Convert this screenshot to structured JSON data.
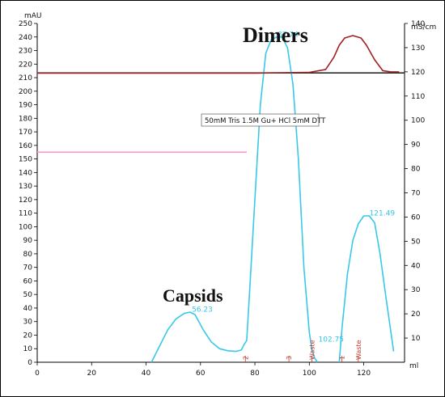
{
  "chart_data": {
    "type": "line",
    "y_left_label": "mAU",
    "y_right_label": "mS/cm",
    "x_unit": "ml",
    "xlim": [
      0,
      135
    ],
    "ylim_left": [
      0,
      250
    ],
    "ylim_right": [
      0,
      140
    ],
    "x_ticks": [
      "0",
      "20",
      "40",
      "60",
      "80",
      "100",
      "120"
    ],
    "x_tick_values": [
      0,
      20,
      40,
      60,
      80,
      100,
      120
    ],
    "y_left_ticks": [
      "0",
      "10",
      "20",
      "30",
      "40",
      "50",
      "60",
      "70",
      "80",
      "90",
      "100",
      "110",
      "120",
      "130",
      "140",
      "150",
      "160",
      "170",
      "180",
      "190",
      "200",
      "210",
      "220",
      "230",
      "240",
      "250"
    ],
    "y_left_tick_values": [
      0,
      10,
      20,
      30,
      40,
      50,
      60,
      70,
      80,
      90,
      100,
      110,
      120,
      130,
      140,
      150,
      160,
      170,
      180,
      190,
      200,
      210,
      220,
      230,
      240,
      250
    ],
    "y_right_ticks": [
      "10",
      "20",
      "30",
      "40",
      "50",
      "60",
      "70",
      "80",
      "90",
      "100",
      "110",
      "120",
      "130",
      "140"
    ],
    "y_right_tick_values": [
      10,
      20,
      30,
      40,
      50,
      60,
      70,
      80,
      90,
      100,
      110,
      120,
      130,
      140
    ],
    "series": [
      {
        "color": "#38c8e8",
        "axis": "left",
        "segments": [
          [
            [
              42,
              0
            ],
            [
              45,
              12
            ],
            [
              48,
              24
            ],
            [
              51,
              32
            ],
            [
              54,
              36
            ],
            [
              56.2,
              37
            ],
            [
              58,
              35
            ],
            [
              61,
              24
            ],
            [
              64,
              15
            ],
            [
              67,
              10
            ],
            [
              70,
              8.5
            ],
            [
              73,
              8
            ],
            [
              75,
              9
            ],
            [
              76,
              13
            ],
            [
              77,
              16
            ],
            [
              78,
              50
            ],
            [
              80,
              120
            ],
            [
              82,
              190
            ],
            [
              84,
              228
            ],
            [
              86,
              238
            ],
            [
              88,
              240
            ],
            [
              90,
              240
            ],
            [
              92,
              232
            ],
            [
              94,
              205
            ],
            [
              96,
              150
            ],
            [
              98,
              70
            ],
            [
              100,
              22
            ],
            [
              101,
              9
            ],
            [
              102,
              3
            ],
            [
              103,
              0
            ]
          ],
          [
            [
              111,
              0
            ],
            [
              112,
              25
            ],
            [
              114,
              65
            ],
            [
              116,
              90
            ],
            [
              118,
              102
            ],
            [
              120,
              108
            ],
            [
              122,
              108
            ],
            [
              124,
              103
            ],
            [
              126,
              80
            ],
            [
              128,
              50
            ],
            [
              130,
              22
            ],
            [
              131,
              8
            ]
          ]
        ]
      },
      {
        "color": "#a02020",
        "axis": "right",
        "points": [
          [
            0,
            119.5
          ],
          [
            50,
            119.5
          ],
          [
            80,
            119.5
          ],
          [
            100,
            119.8
          ],
          [
            106,
            121
          ],
          [
            109,
            126
          ],
          [
            111,
            131
          ],
          [
            113,
            134
          ],
          [
            116,
            135
          ],
          [
            119,
            134
          ],
          [
            121,
            131
          ],
          [
            124,
            125
          ],
          [
            127,
            120.5
          ],
          [
            130,
            120
          ],
          [
            133,
            120
          ]
        ]
      }
    ],
    "hlines": [
      {
        "axis": "left",
        "y": 213.5,
        "color": "#2b2b2b"
      },
      {
        "axis": "left",
        "y": 155,
        "color": "#ff99cc",
        "x_end": 77
      }
    ],
    "peak_labels": [
      {
        "text": "56.23",
        "x": 56.23,
        "y": 36
      },
      {
        "text": "87.74",
        "x": 87.74,
        "y": 239
      },
      {
        "text": "102.75",
        "x": 102.75,
        "y": 14
      },
      {
        "text": "121.49",
        "x": 121.49,
        "y": 107
      }
    ],
    "fraction_marks": [
      {
        "text": "2",
        "x": 76.5
      },
      {
        "text": "3",
        "x": 92.5
      },
      {
        "text": "Waste",
        "x": 101
      },
      {
        "text": "1",
        "x": 112
      },
      {
        "text": "Waste",
        "x": 118
      }
    ],
    "annotations": {
      "dimers": "Dimers",
      "capsids": "Capsids",
      "buffer": "50mM Tris   1.5M Gu+ HCl   5mM DTT"
    }
  }
}
